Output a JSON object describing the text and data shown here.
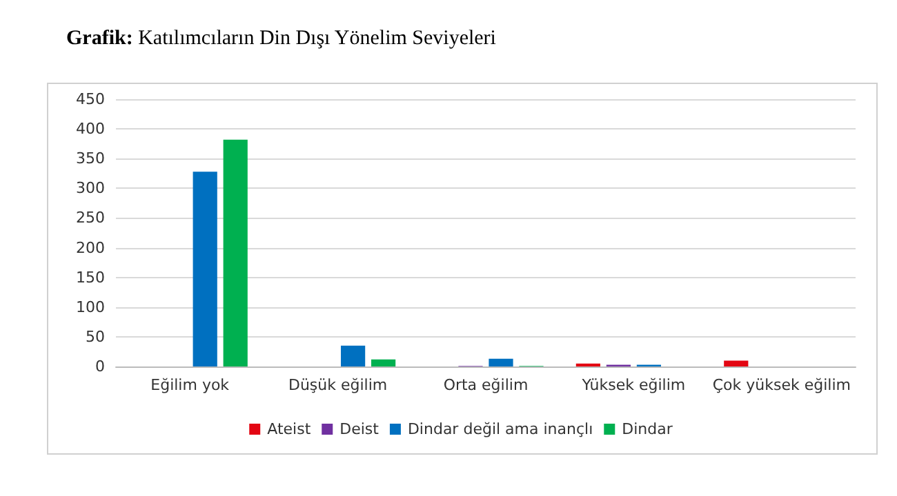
{
  "chart_data": {
    "type": "bar",
    "title": "Grafik: Katılımcıların Din Dışı Yönelim Seviyeleri",
    "categories": [
      "Eğilim yok",
      "Düşük eğilim",
      "Orta eğilim",
      "Yüksek eğilim",
      "Çok yüksek eğilim"
    ],
    "series": [
      {
        "name": "Ateist",
        "color": "#e30613",
        "values": [
          0,
          0,
          0,
          5,
          10
        ]
      },
      {
        "name": "Deist",
        "color": "#7030a0",
        "values": [
          0,
          0,
          1,
          3,
          0
        ]
      },
      {
        "name": "Dindar değil ama inançlı",
        "color": "#0070c0",
        "values": [
          328,
          35,
          13,
          3,
          0
        ]
      },
      {
        "name": "Dindar",
        "color": "#00b050",
        "values": [
          382,
          12,
          1,
          0,
          0
        ]
      }
    ],
    "ylim": [
      0,
      450
    ],
    "yticks": [
      0,
      50,
      100,
      150,
      200,
      250,
      300,
      350,
      400,
      450
    ],
    "grid": "y",
    "legend": "bottom"
  }
}
